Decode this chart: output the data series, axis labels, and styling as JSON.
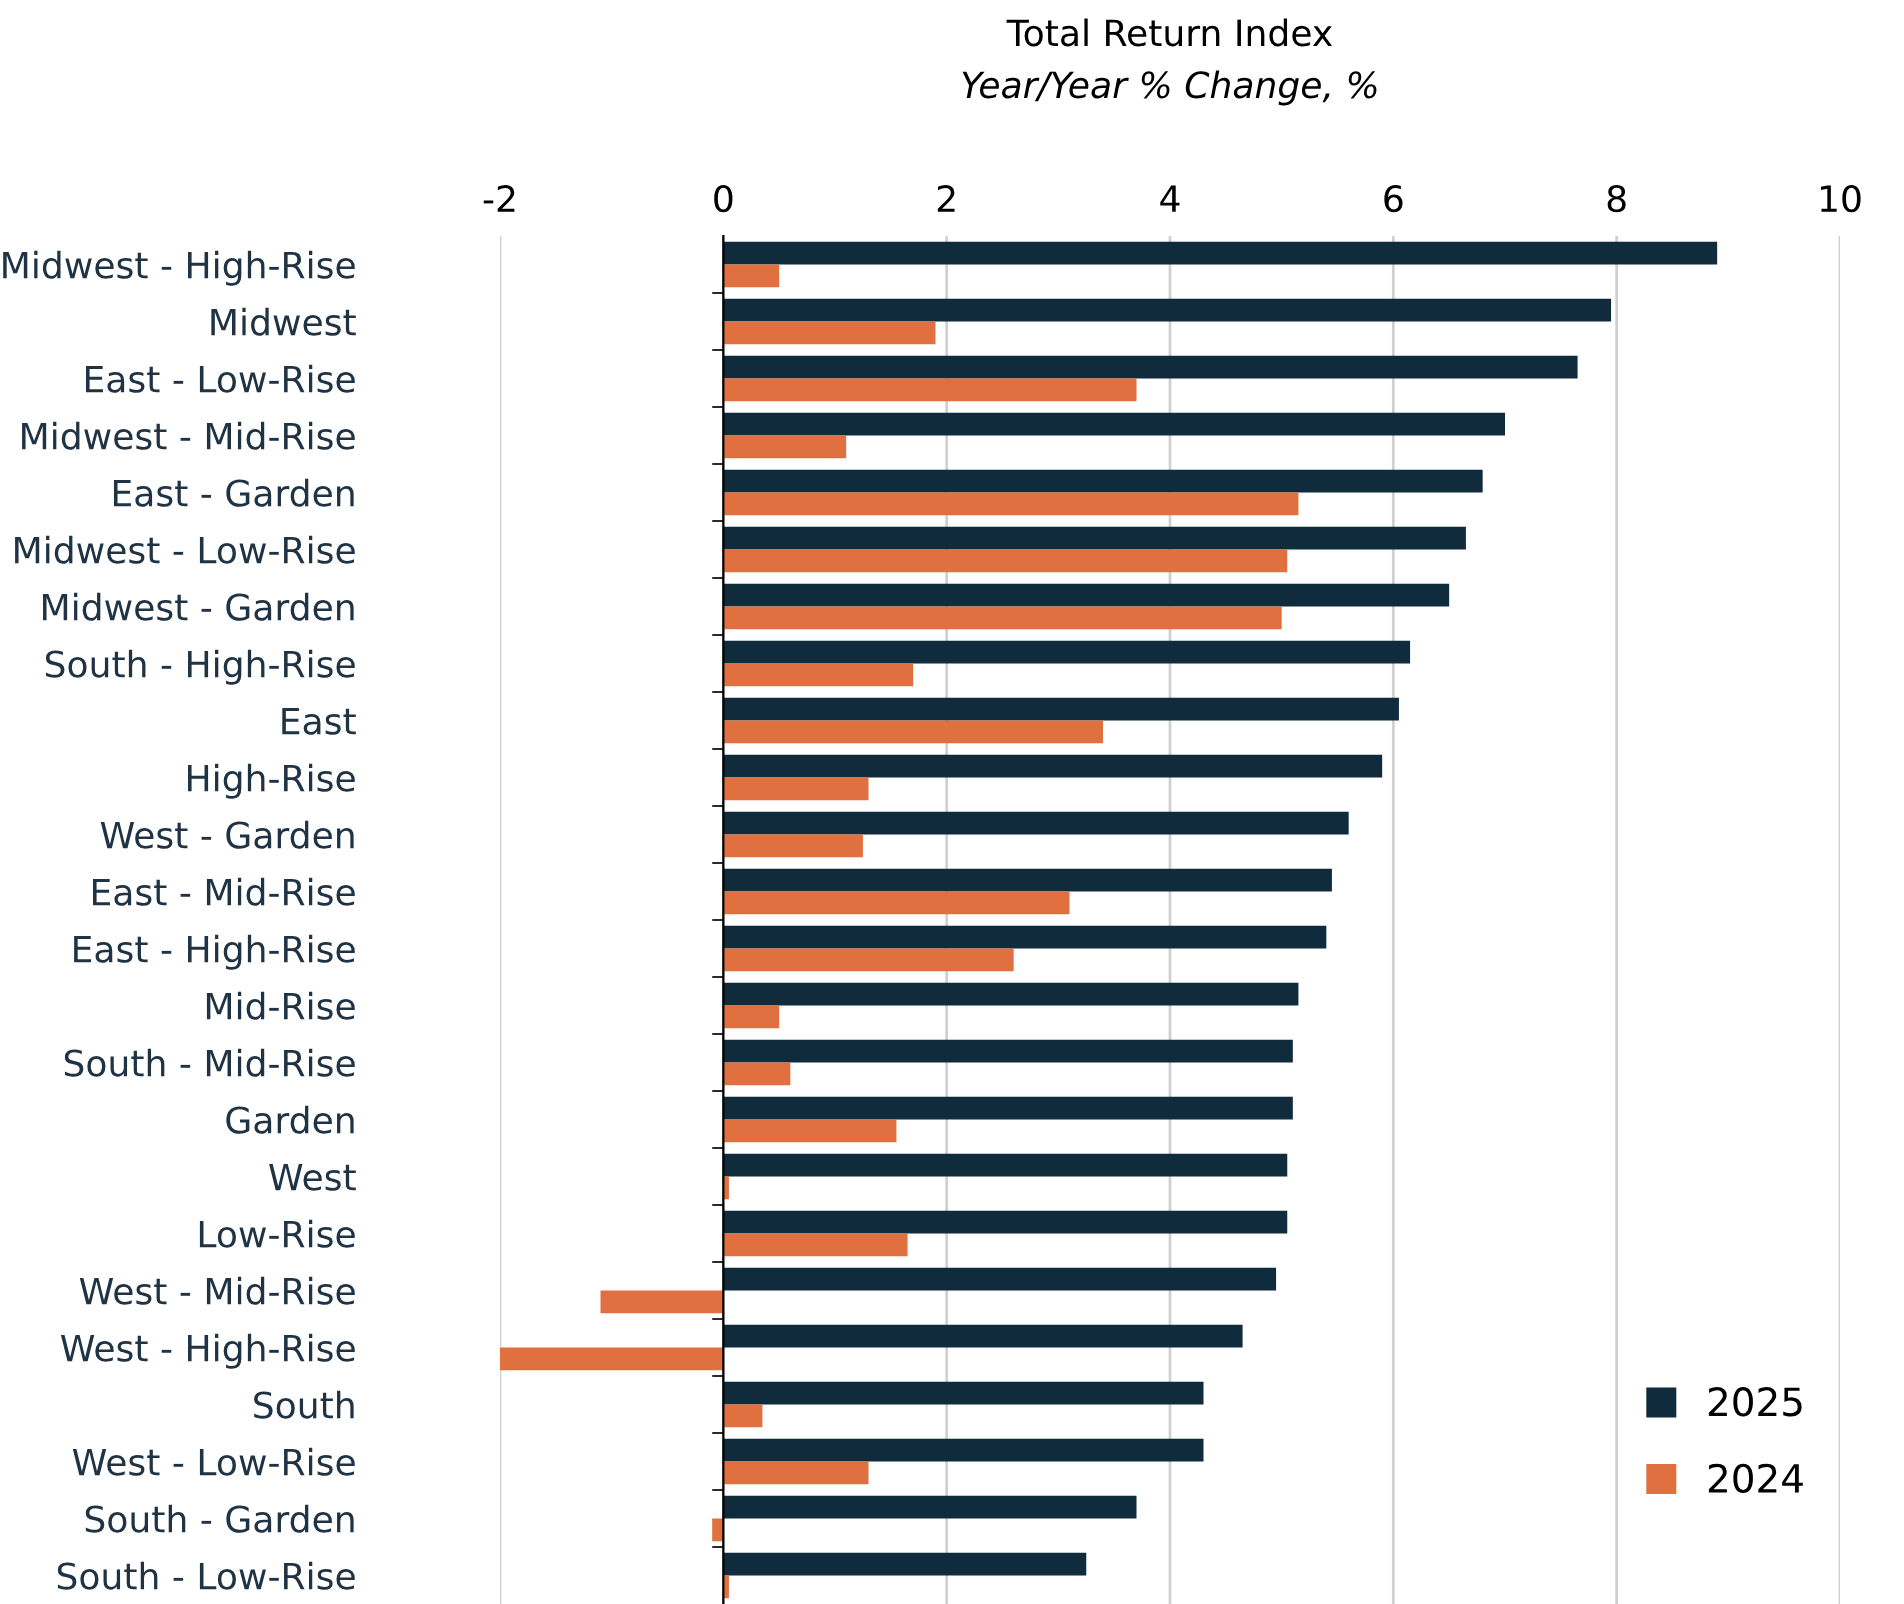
{
  "chart_data": {
    "type": "bar",
    "orientation": "horizontal",
    "title": "Total Return Index",
    "subtitle": "Year/Year % Change, %",
    "categories": [
      "Midwest - High-Rise",
      "Midwest",
      "East - Low-Rise",
      "Midwest - Mid-Rise",
      "East - Garden",
      "Midwest - Low-Rise",
      "Midwest - Garden",
      "South - High-Rise",
      "East",
      "High-Rise",
      "West - Garden",
      "East - Mid-Rise",
      "East - High-Rise",
      "Mid-Rise",
      "South - Mid-Rise",
      "Garden",
      "West",
      "Low-Rise",
      "West - Mid-Rise",
      "West - High-Rise",
      "South",
      "West - Low-Rise",
      "South - Garden",
      "South - Low-Rise"
    ],
    "series": [
      {
        "name": "2025",
        "color": "#0f2b3c",
        "values": [
          8.9,
          7.95,
          7.65,
          7.0,
          6.8,
          6.65,
          6.5,
          6.15,
          6.05,
          5.9,
          5.6,
          5.45,
          5.4,
          5.15,
          5.1,
          5.1,
          5.05,
          5.05,
          4.95,
          4.65,
          4.3,
          4.3,
          3.7,
          3.25
        ]
      },
      {
        "name": "2024",
        "color": "#e07040",
        "values": [
          0.5,
          1.9,
          3.7,
          1.1,
          5.15,
          5.05,
          5.0,
          1.7,
          3.4,
          1.3,
          1.25,
          3.1,
          2.6,
          0.5,
          0.6,
          1.55,
          0.05,
          1.65,
          -1.1,
          -2.0,
          0.35,
          1.3,
          -0.1,
          0.05
        ]
      }
    ],
    "xlim": [
      -2,
      10
    ],
    "xticks": [
      -2,
      0,
      2,
      4,
      6,
      8,
      10
    ],
    "grid": "x",
    "legend": "bottom right"
  }
}
